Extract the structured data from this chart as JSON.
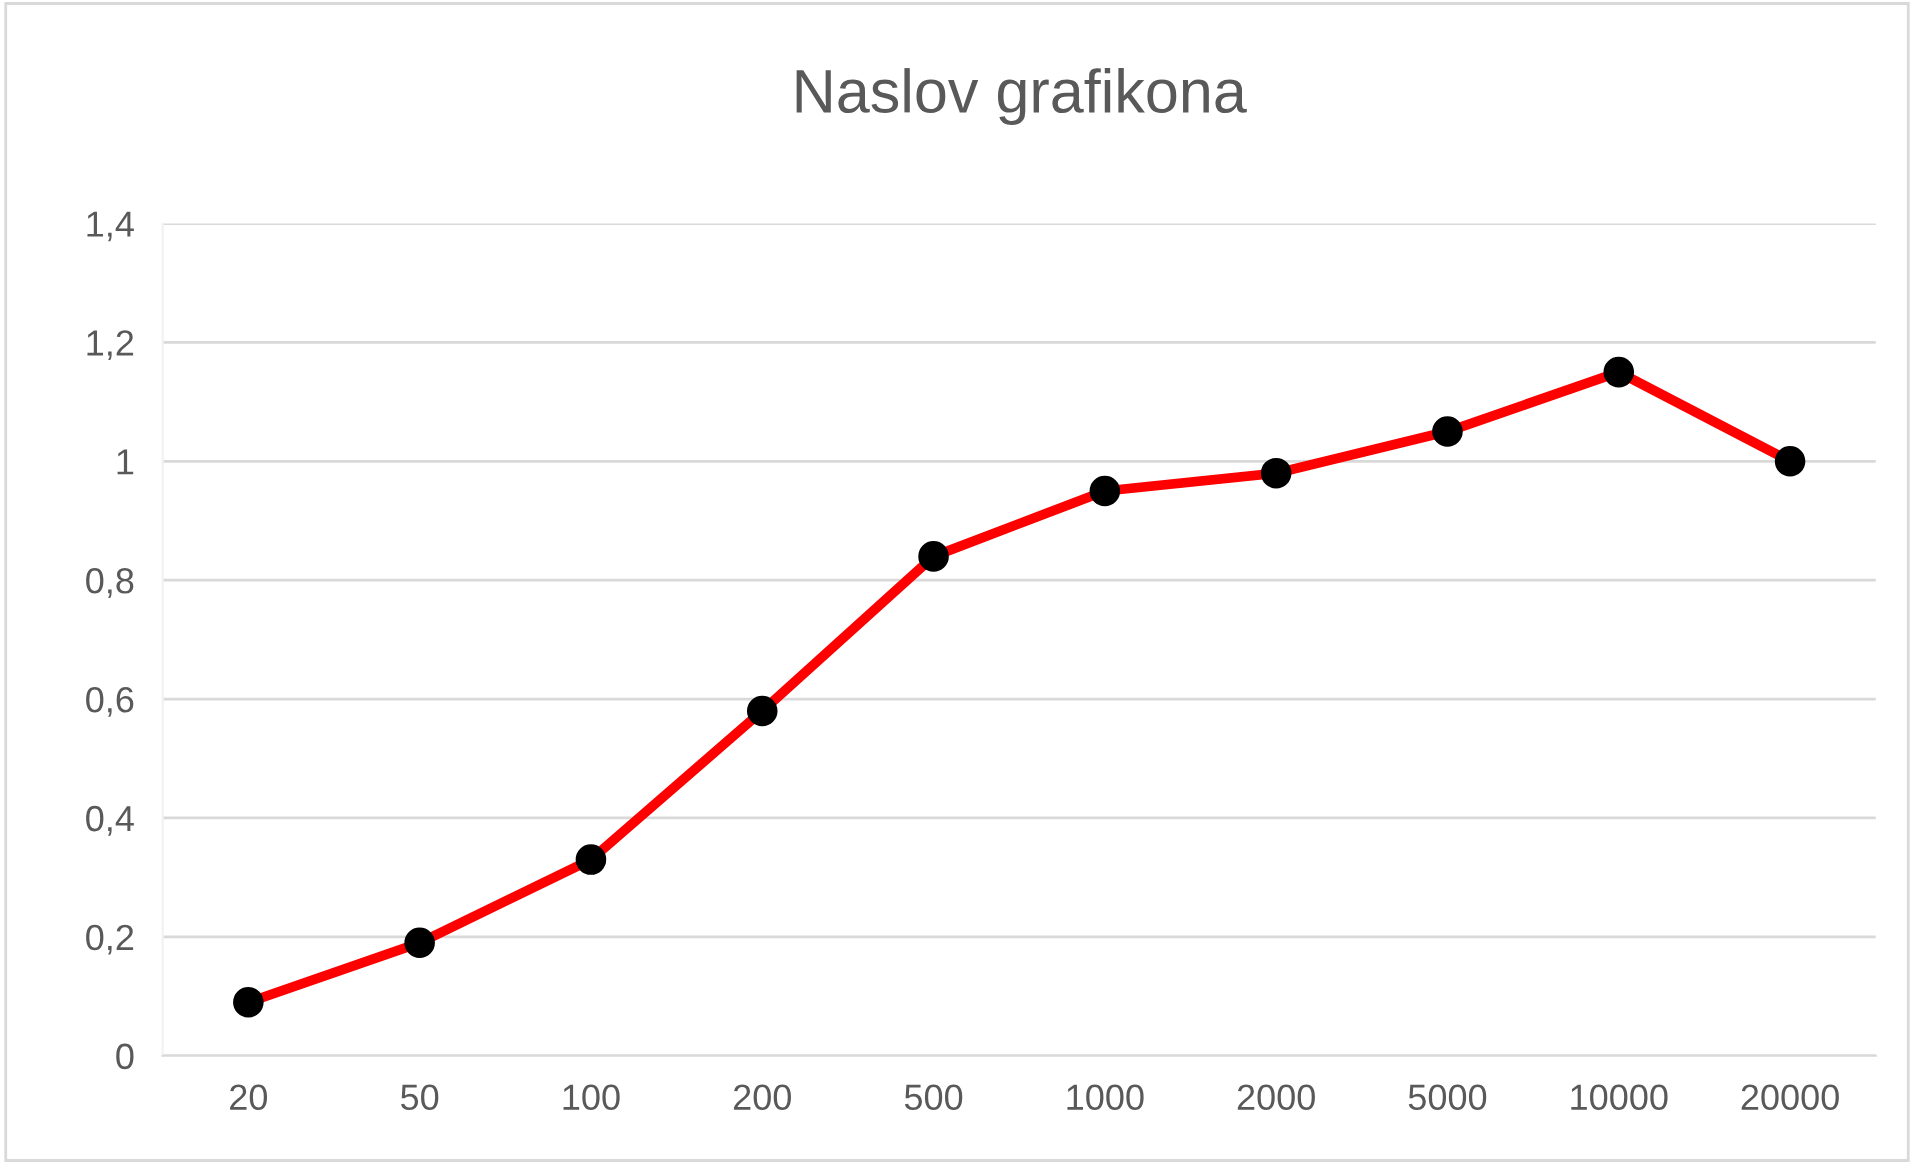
{
  "chart_data": {
    "type": "line",
    "title": "Naslov grafikona",
    "categories": [
      "20",
      "50",
      "100",
      "200",
      "500",
      "1000",
      "2000",
      "5000",
      "10000",
      "20000"
    ],
    "series": [
      {
        "color": "#ff0000",
        "values": [
          0.09,
          0.19,
          0.33,
          0.58,
          0.84,
          0.95,
          0.98,
          1.05,
          1.15,
          1.0
        ]
      }
    ],
    "marker": "circle",
    "line_style": "solid",
    "ylim": [
      0,
      1.4
    ],
    "yticks": [
      0,
      {
        "value": 0.2,
        "label": "0,2"
      },
      {
        "value": 0.4,
        "label": "0,4"
      },
      {
        "value": 0.6,
        "label": "0,6"
      },
      {
        "value": 0.8,
        "label": "0,8"
      },
      1,
      {
        "value": 1.2,
        "label": "1,2"
      },
      {
        "value": 1.4,
        "label": "1,4"
      }
    ],
    "grid": "y"
  }
}
